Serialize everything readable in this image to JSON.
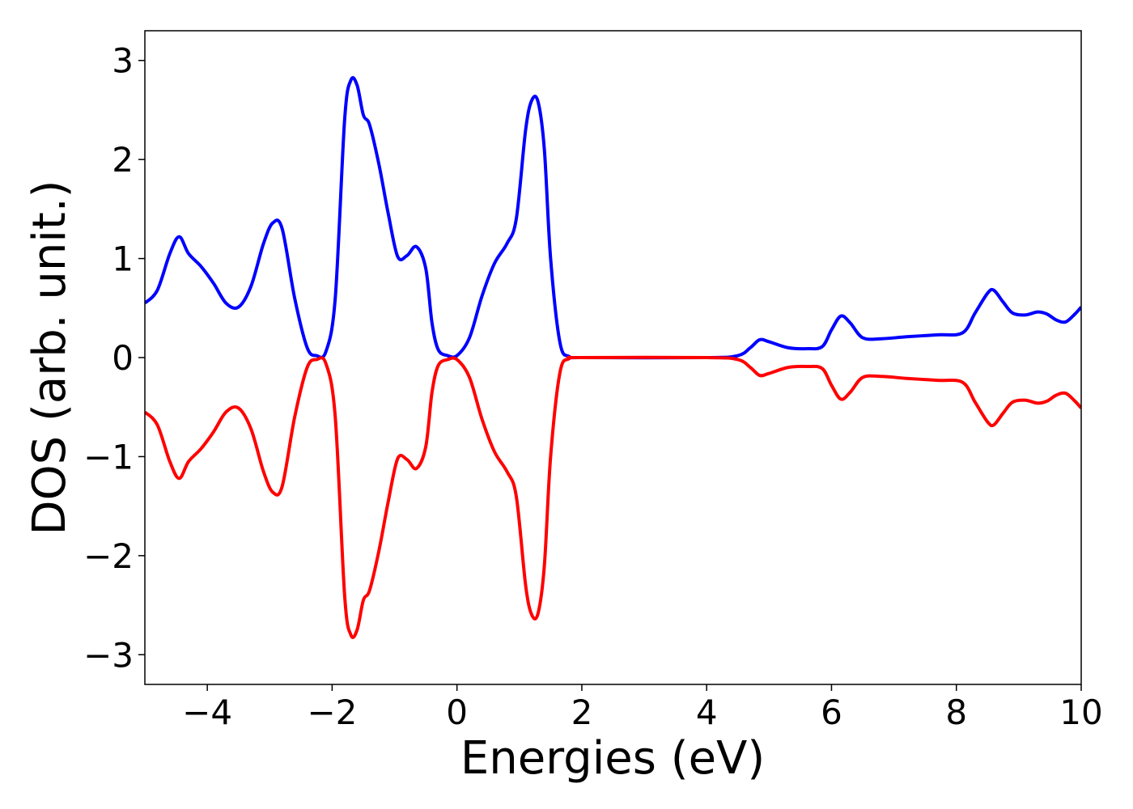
{
  "chart_data": {
    "type": "line",
    "title": "",
    "xlabel": "Energies (eV)",
    "ylabel": "DOS (arb. unit.)",
    "xlim": [
      -5,
      10
    ],
    "ylim": [
      -3.3,
      3.3
    ],
    "xticks": [
      -4,
      -2,
      0,
      2,
      4,
      6,
      8,
      10
    ],
    "xtick_labels": [
      "−4",
      "−2",
      "0",
      "2",
      "4",
      "6",
      "8",
      "10"
    ],
    "yticks": [
      -3,
      -2,
      -1,
      0,
      1,
      2,
      3
    ],
    "ytick_labels": [
      "−3",
      "−2",
      "−1",
      "0",
      "1",
      "2",
      "3"
    ],
    "grid": false,
    "legend": "none",
    "series": [
      {
        "color": "#0000ff",
        "x": [
          -5.0,
          -4.8,
          -4.6,
          -4.45,
          -4.3,
          -4.1,
          -3.9,
          -3.7,
          -3.5,
          -3.3,
          -3.1,
          -2.95,
          -2.8,
          -2.6,
          -2.4,
          -2.25,
          -2.1,
          -1.95,
          -1.8,
          -1.7,
          -1.6,
          -1.5,
          -1.4,
          -1.25,
          -1.1,
          -0.95,
          -0.8,
          -0.65,
          -0.5,
          -0.4,
          -0.3,
          -0.15,
          0.0,
          0.2,
          0.4,
          0.6,
          0.8,
          0.95,
          1.1,
          1.2,
          1.3,
          1.4,
          1.5,
          1.65,
          1.8,
          2.0,
          4.0,
          4.5,
          4.7,
          4.85,
          5.0,
          5.3,
          5.6,
          5.85,
          6.0,
          6.15,
          6.3,
          6.5,
          6.8,
          7.2,
          7.7,
          8.1,
          8.3,
          8.5,
          8.6,
          8.75,
          8.9,
          9.1,
          9.3,
          9.45,
          9.6,
          9.75,
          9.9,
          10.0
        ],
        "y": [
          0.55,
          0.68,
          1.05,
          1.22,
          1.05,
          0.92,
          0.75,
          0.55,
          0.51,
          0.72,
          1.15,
          1.36,
          1.3,
          0.6,
          0.1,
          0.02,
          0.06,
          0.6,
          2.4,
          2.8,
          2.75,
          2.45,
          2.35,
          1.95,
          1.45,
          1.02,
          1.03,
          1.12,
          0.9,
          0.35,
          0.08,
          0.02,
          0.02,
          0.2,
          0.62,
          0.95,
          1.15,
          1.4,
          2.3,
          2.6,
          2.58,
          2.1,
          1.0,
          0.15,
          0.01,
          0.0,
          0.0,
          0.02,
          0.1,
          0.18,
          0.16,
          0.1,
          0.09,
          0.11,
          0.28,
          0.42,
          0.35,
          0.2,
          0.19,
          0.21,
          0.23,
          0.25,
          0.45,
          0.65,
          0.68,
          0.56,
          0.45,
          0.43,
          0.46,
          0.44,
          0.38,
          0.36,
          0.44,
          0.51
        ]
      },
      {
        "color": "#ff0000",
        "x": [
          -5.0,
          -4.8,
          -4.6,
          -4.45,
          -4.3,
          -4.1,
          -3.9,
          -3.7,
          -3.5,
          -3.3,
          -3.1,
          -2.95,
          -2.8,
          -2.6,
          -2.4,
          -2.25,
          -2.1,
          -1.95,
          -1.8,
          -1.7,
          -1.6,
          -1.5,
          -1.4,
          -1.25,
          -1.1,
          -0.95,
          -0.8,
          -0.65,
          -0.5,
          -0.4,
          -0.3,
          -0.15,
          0.0,
          0.2,
          0.4,
          0.6,
          0.8,
          0.95,
          1.1,
          1.2,
          1.3,
          1.4,
          1.5,
          1.65,
          1.8,
          2.0,
          4.0,
          4.5,
          4.7,
          4.85,
          5.0,
          5.3,
          5.6,
          5.85,
          6.0,
          6.15,
          6.3,
          6.5,
          6.8,
          7.2,
          7.7,
          8.1,
          8.3,
          8.5,
          8.6,
          8.75,
          8.9,
          9.1,
          9.3,
          9.45,
          9.6,
          9.75,
          9.9,
          10.0
        ],
        "y": [
          -0.55,
          -0.68,
          -1.05,
          -1.22,
          -1.05,
          -0.92,
          -0.75,
          -0.55,
          -0.51,
          -0.72,
          -1.15,
          -1.36,
          -1.3,
          -0.6,
          -0.1,
          -0.02,
          -0.06,
          -0.6,
          -2.4,
          -2.8,
          -2.75,
          -2.45,
          -2.35,
          -1.95,
          -1.45,
          -1.02,
          -1.03,
          -1.12,
          -0.9,
          -0.35,
          -0.08,
          -0.02,
          -0.02,
          -0.2,
          -0.62,
          -0.95,
          -1.15,
          -1.4,
          -2.3,
          -2.6,
          -2.58,
          -2.1,
          -1.0,
          -0.15,
          -0.01,
          0.0,
          0.0,
          -0.02,
          -0.1,
          -0.18,
          -0.16,
          -0.1,
          -0.09,
          -0.11,
          -0.28,
          -0.42,
          -0.35,
          -0.2,
          -0.19,
          -0.21,
          -0.23,
          -0.25,
          -0.45,
          -0.65,
          -0.68,
          -0.56,
          -0.45,
          -0.43,
          -0.46,
          -0.44,
          -0.38,
          -0.36,
          -0.44,
          -0.51
        ]
      }
    ]
  }
}
